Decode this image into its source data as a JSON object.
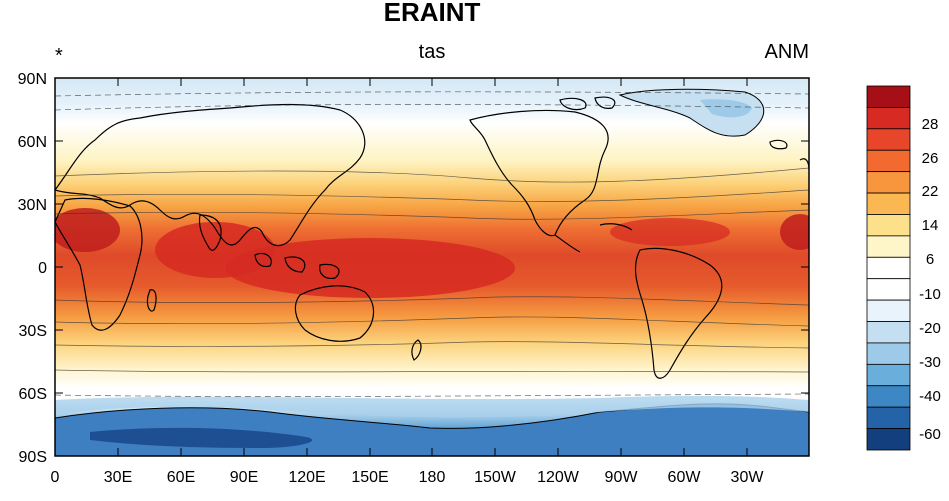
{
  "map": {
    "title": "ERAINT",
    "left_string": "*",
    "center_string": "tas",
    "right_string": "ANM",
    "projection": "cylindrical equidistant",
    "lat_ticks": [
      "90N",
      "60N",
      "30N",
      "0",
      "30S",
      "60S",
      "90S"
    ],
    "lon_ticks": [
      "0",
      "30E",
      "60E",
      "90E",
      "120E",
      "150E",
      "180",
      "150W",
      "120W",
      "90W",
      "60W",
      "30W"
    ],
    "colors": {
      "ocean_background": "#fdfdf8",
      "coastline": "#000000",
      "contour_line": "#222222"
    }
  },
  "colorbar": {
    "labels": [
      "28",
      "26",
      "22",
      "14",
      "6",
      "-10",
      "-20",
      "-30",
      "-40",
      "-60"
    ],
    "colors": [
      "#a50f15",
      "#d62a22",
      "#e8462b",
      "#f26a30",
      "#f7963c",
      "#fbb752",
      "#fde08a",
      "#fef6c8",
      "#ffffff",
      "#ffffff",
      "#e8f3fb",
      "#c4dff2",
      "#9dcae9",
      "#6aaedb",
      "#3d87c4",
      "#2463a8",
      "#143f7f"
    ]
  }
}
